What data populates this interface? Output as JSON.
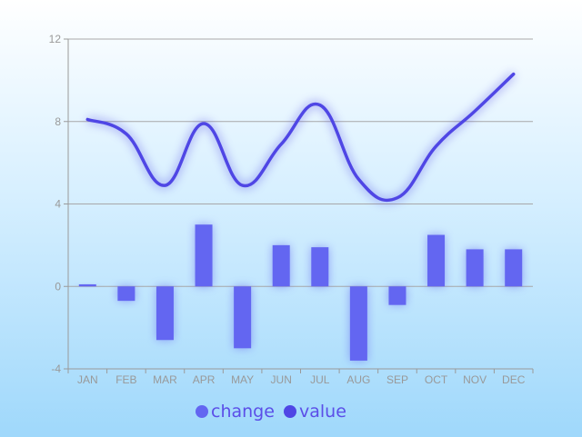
{
  "chart_data": {
    "type": "bar",
    "categories": [
      "JAN",
      "FEB",
      "MAR",
      "APR",
      "MAY",
      "JUN",
      "JUL",
      "AUG",
      "SEP",
      "OCT",
      "NOV",
      "DEC"
    ],
    "series": [
      {
        "name": "change",
        "type": "bar",
        "values": [
          0.1,
          -0.7,
          -2.6,
          3.0,
          -3.0,
          2.0,
          1.9,
          -3.6,
          -0.9,
          2.5,
          1.8,
          1.8
        ],
        "color": "#6366f1"
      },
      {
        "name": "value",
        "type": "line",
        "values": [
          8.1,
          7.4,
          4.9,
          7.9,
          4.9,
          6.9,
          8.8,
          5.2,
          4.3,
          6.8,
          8.5,
          10.3
        ],
        "color": "#4f46e5"
      }
    ],
    "yticks": [
      -4,
      0,
      4,
      8,
      12
    ],
    "ylim": [
      -4,
      12
    ],
    "grid": true,
    "legend_position": "bottom-center",
    "legend_text_color": "#5b4ee8"
  }
}
